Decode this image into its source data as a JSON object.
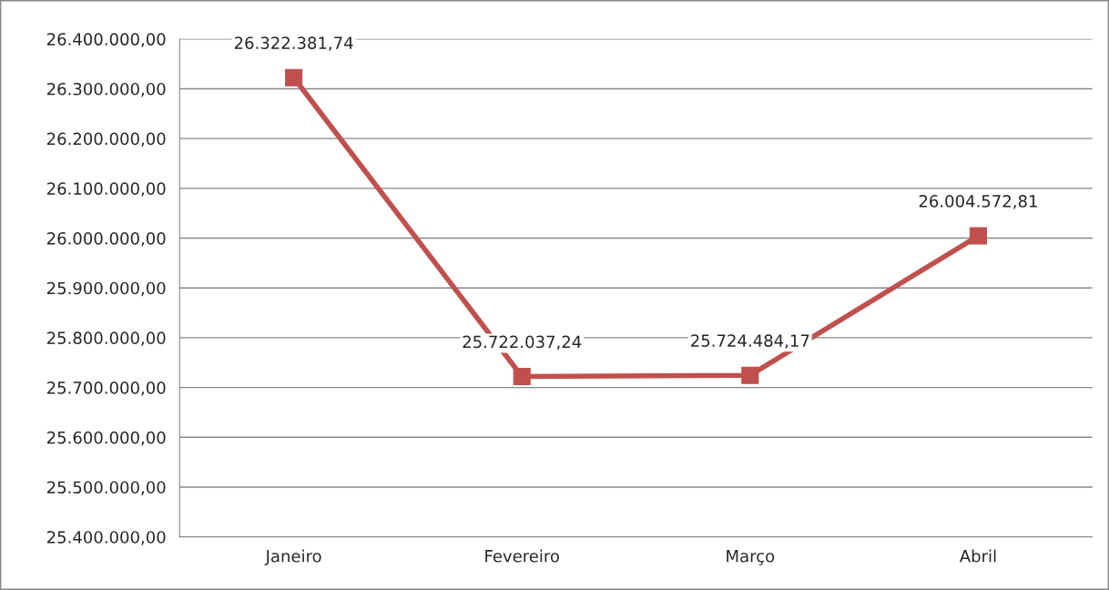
{
  "chart_data": {
    "type": "line",
    "categories": [
      "Janeiro",
      "Fevereiro",
      "Março",
      "Abril"
    ],
    "series": [
      {
        "color": "#c0504d",
        "values": [
          26322381.74,
          25722037.24,
          25724484.17,
          26004572.81
        ],
        "value_labels": [
          "26.322.381,74",
          "25.722.037,24",
          "25.724.484,17",
          "26.004.572,81"
        ]
      }
    ],
    "ylim": [
      25400000,
      26400000
    ],
    "yticks": [
      {
        "value": 25400000,
        "label": "25.400.000,00"
      },
      {
        "value": 25500000,
        "label": "25.500.000,00"
      },
      {
        "value": 25600000,
        "label": "25.600.000,00"
      },
      {
        "value": 25700000,
        "label": "25.700.000,00"
      },
      {
        "value": 25800000,
        "label": "25.800.000,00"
      },
      {
        "value": 25900000,
        "label": "25.900.000,00"
      },
      {
        "value": 26000000,
        "label": "26.000.000,00"
      },
      {
        "value": 26100000,
        "label": "26.100.000,00"
      },
      {
        "value": 26200000,
        "label": "26.200.000,00"
      },
      {
        "value": 26300000,
        "label": "26.300.000,00"
      },
      {
        "value": 26400000,
        "label": "26.400.000,00"
      }
    ],
    "grid": "y",
    "marker": "square",
    "line_style": "solid",
    "legend": false
  }
}
